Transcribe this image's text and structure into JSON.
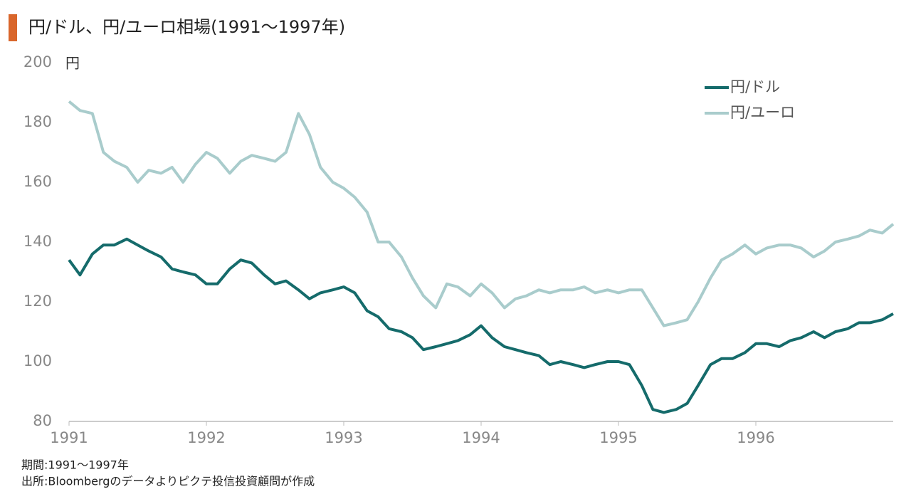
{
  "chart_data": {
    "type": "line",
    "title": "円/ドル、円/ユーロ相場(1991〜1997年)",
    "y_unit": "円",
    "notes": [
      "期間:1991〜1997年",
      "出所:Bloombergのデータよりピクテ投信投資顧問が作成"
    ],
    "x": [
      1991,
      1991.08,
      1991.17,
      1991.25,
      1991.33,
      1991.42,
      1991.5,
      1991.58,
      1991.67,
      1991.75,
      1991.83,
      1991.92,
      1992,
      1992.08,
      1992.17,
      1992.25,
      1992.33,
      1992.42,
      1992.5,
      1992.58,
      1992.67,
      1992.75,
      1992.83,
      1992.92,
      1993,
      1993.08,
      1993.17,
      1993.25,
      1993.33,
      1993.42,
      1993.5,
      1993.58,
      1993.67,
      1993.75,
      1993.83,
      1993.92,
      1994,
      1994.08,
      1994.17,
      1994.25,
      1994.33,
      1994.42,
      1994.5,
      1994.58,
      1994.67,
      1994.75,
      1994.83,
      1994.92,
      1995,
      1995.08,
      1995.17,
      1995.25,
      1995.33,
      1995.42,
      1995.5,
      1995.58,
      1995.67,
      1995.75,
      1995.83,
      1995.92,
      1996,
      1996.08,
      1996.17,
      1996.25,
      1996.33,
      1996.42,
      1996.5,
      1996.58,
      1996.67,
      1996.75,
      1996.83,
      1996.92,
      1997
    ],
    "series": [
      {
        "name": "円/ドル",
        "color": "#156b6b",
        "values": [
          134,
          129,
          136,
          139,
          139,
          141,
          139,
          137,
          135,
          131,
          130,
          129,
          126,
          126,
          131,
          134,
          133,
          129,
          126,
          127,
          124,
          121,
          123,
          124,
          125,
          123,
          117,
          115,
          111,
          110,
          108,
          104,
          105,
          106,
          107,
          109,
          112,
          108,
          105,
          104,
          103,
          102,
          99,
          100,
          99,
          98,
          99,
          100,
          100,
          99,
          92,
          84,
          83,
          84,
          86,
          92,
          99,
          101,
          101,
          103,
          106,
          106,
          105,
          107,
          108,
          110,
          108,
          110,
          111,
          113,
          113,
          114,
          116
        ]
      },
      {
        "name": "円/ユーロ",
        "color": "#a9cccc",
        "values": [
          187,
          184,
          183,
          170,
          167,
          165,
          160,
          164,
          163,
          165,
          160,
          166,
          170,
          168,
          163,
          167,
          169,
          168,
          167,
          170,
          183,
          176,
          165,
          160,
          158,
          155,
          150,
          140,
          140,
          135,
          128,
          122,
          118,
          126,
          125,
          122,
          126,
          123,
          118,
          121,
          122,
          124,
          123,
          124,
          124,
          125,
          123,
          124,
          123,
          124,
          124,
          118,
          112,
          113,
          114,
          120,
          128,
          134,
          136,
          139,
          136,
          138,
          139,
          139,
          138,
          135,
          137,
          140,
          141,
          142,
          144,
          143,
          146
        ]
      }
    ],
    "xlim": [
      1991,
      1997
    ],
    "xticks": [
      1991,
      1992,
      1993,
      1994,
      1995,
      1996
    ],
    "ylim": [
      80,
      200
    ],
    "yticks": [
      80,
      100,
      120,
      140,
      160,
      180,
      200
    ],
    "grid": false,
    "legend": "top-right"
  }
}
